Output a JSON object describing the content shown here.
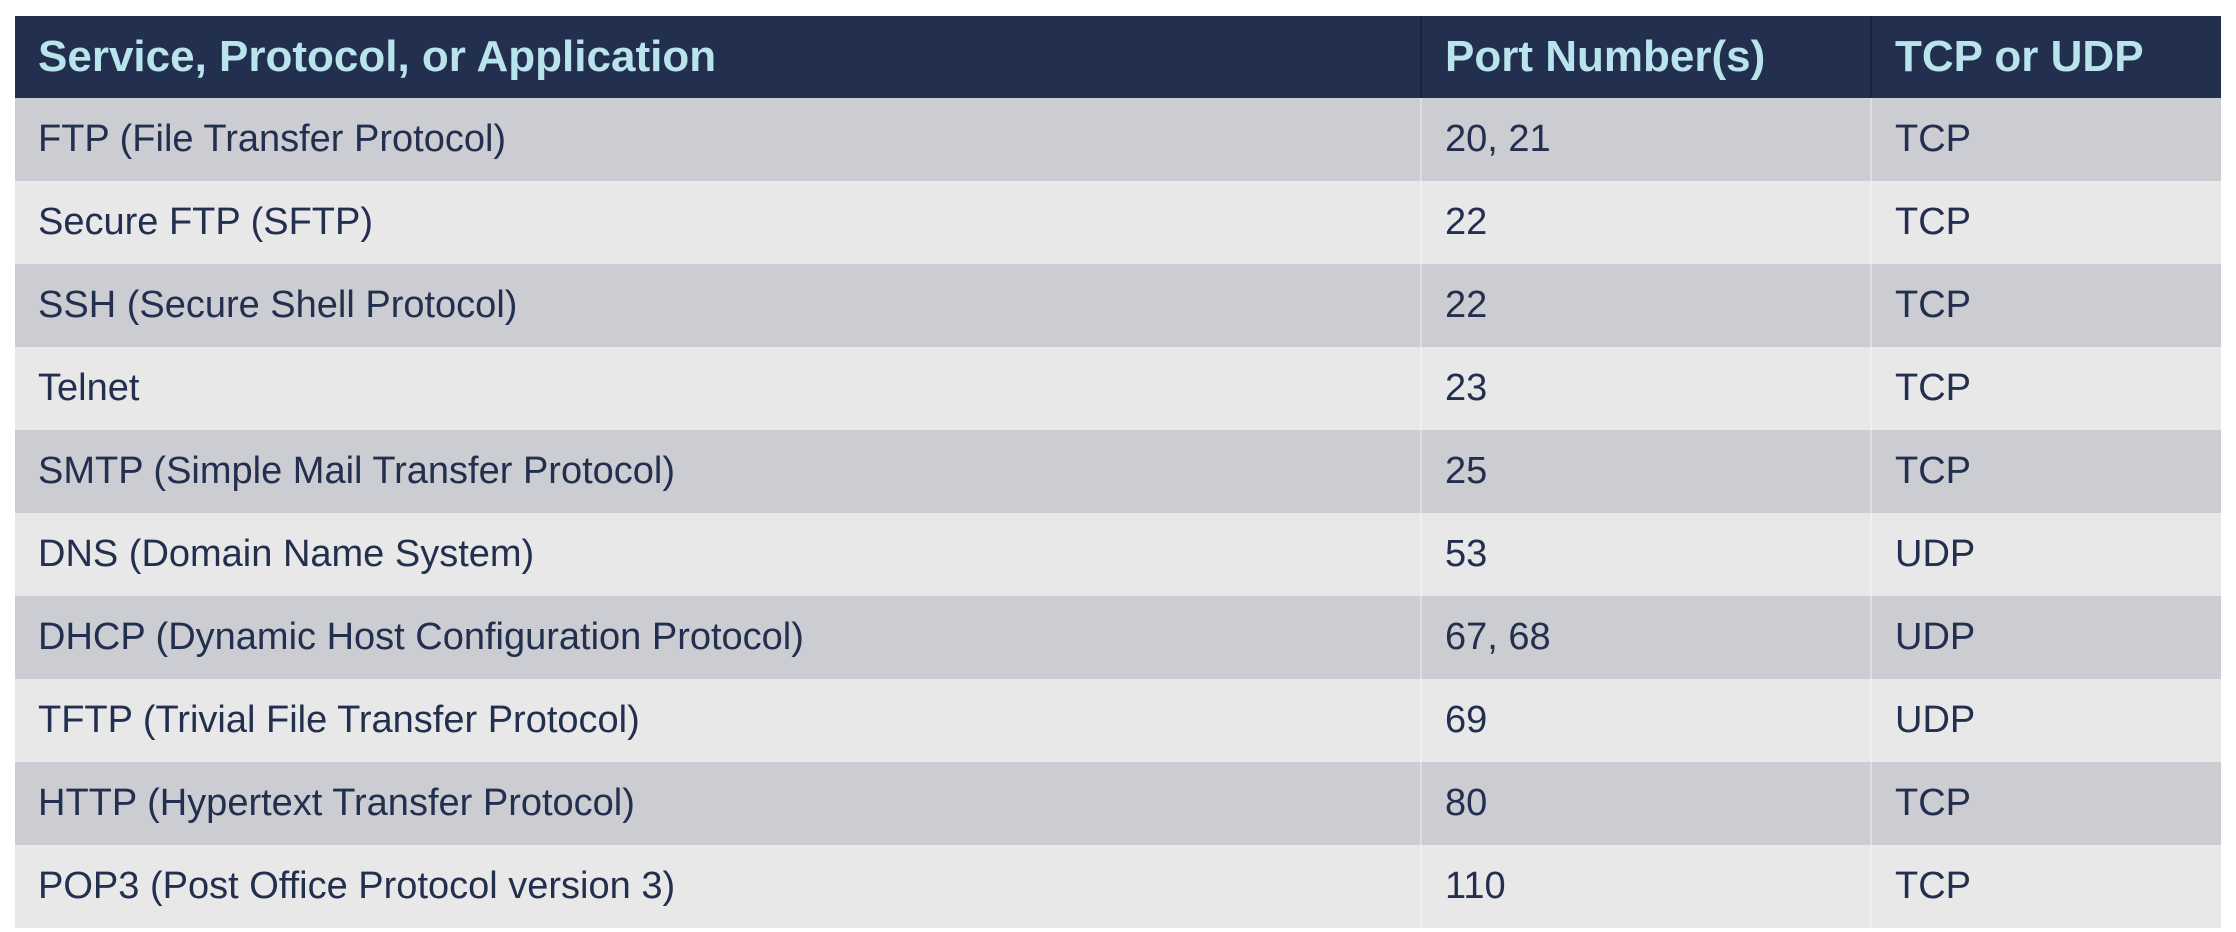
{
  "table": {
    "headers": [
      "Service, Protocol, or Application",
      "Port Number(s)",
      "TCP or UDP"
    ],
    "rows": [
      [
        "FTP (File Transfer Protocol)",
        "20, 21",
        "TCP"
      ],
      [
        "Secure FTP (SFTP)",
        "22",
        "TCP"
      ],
      [
        "SSH (Secure Shell Protocol)",
        "22",
        "TCP"
      ],
      [
        "Telnet",
        "23",
        "TCP"
      ],
      [
        "SMTP (Simple Mail Transfer Protocol)",
        "25",
        "TCP"
      ],
      [
        "DNS (Domain Name System)",
        "53",
        "UDP"
      ],
      [
        "DHCP (Dynamic Host Configuration Protocol)",
        "67, 68",
        "UDP"
      ],
      [
        "TFTP (Trivial File Transfer Protocol)",
        "69",
        "UDP"
      ],
      [
        "HTTP (Hypertext Transfer Protocol)",
        "80",
        "TCP"
      ],
      [
        "POP3 (Post Office Protocol version 3)",
        "110",
        "TCP"
      ]
    ]
  },
  "colors": {
    "header_bg": "#232f4e",
    "header_text": "#b9e4ec",
    "row_odd": "#cbcdd2",
    "row_even": "#e8e8e9",
    "body_text": "#232f4e"
  }
}
